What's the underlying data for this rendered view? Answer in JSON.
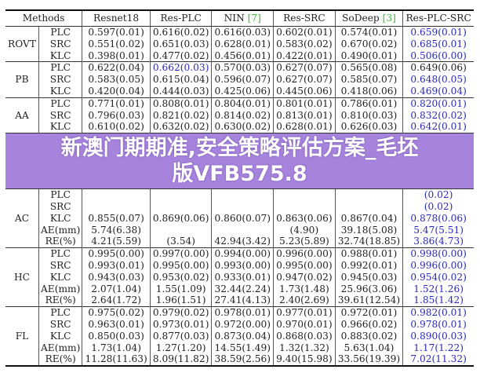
{
  "header": {
    "methods": "Methods",
    "columns": [
      {
        "label": "Resnet18",
        "cite": ""
      },
      {
        "label": "Res-PLC",
        "cite": ""
      },
      {
        "label": "NIN ",
        "cite": "[7]"
      },
      {
        "label": "Res-SRC",
        "cite": ""
      },
      {
        "label": "SoDeep ",
        "cite": "[3]"
      },
      {
        "label": "Res-PLC-SRC",
        "cite": ""
      }
    ]
  },
  "colors": {
    "best": "#2b2bb8",
    "citation": "#3cb83c",
    "banner": "#9670d7"
  },
  "groups": [
    {
      "name": "ROVT",
      "rows": [
        {
          "metric": "PLC",
          "values": [
            "0.597(0.01)",
            "0.616(0.02)",
            "0.616(0.03)",
            "0.602(0.01)",
            "0.574(0.01)",
            "0.659(0.01)"
          ],
          "best": [
            5
          ]
        },
        {
          "metric": "SRC",
          "values": [
            "0.551(0.02)",
            "0.651(0.03)",
            "0.628(0.01)",
            "0.583(0.02)",
            "0.670(0.02)",
            "0.685(0.01)"
          ],
          "best": [
            5
          ]
        },
        {
          "metric": "KLC",
          "values": [
            "0.398(0.01)",
            "0.477(0.02)",
            "0.456(0.01)",
            "0.422(0.01)",
            "0.490(0.01)",
            "0.506(0.00)"
          ],
          "best": [
            5
          ]
        }
      ]
    },
    {
      "name": "PB",
      "rows": [
        {
          "metric": "PLC",
          "values": [
            "0.622(0.04)",
            "0.662(0.03)",
            "0.570(0.03)",
            "0.627(0.07)",
            "0.565(0.08)",
            "0.649(0.06)"
          ],
          "best": [
            1
          ]
        },
        {
          "metric": "SRC",
          "values": [
            "0.583(0.05)",
            "0.615(0.04)",
            "0.596(0.07)",
            "0.627(0.07)",
            "0.585(0.07)",
            "0.648(0.05)"
          ],
          "best": [
            5
          ]
        },
        {
          "metric": "KLC",
          "values": [
            "0.420(0.04)",
            "0.444(0.03)",
            "0.425(0.06)",
            "0.445(0.06)",
            "0.418(0.06)",
            "0.469(0.04)"
          ],
          "best": [
            5
          ]
        }
      ]
    },
    {
      "name": "AA",
      "rows": [
        {
          "metric": "PLC",
          "values": [
            "0.771(0.01)",
            "0.808(0.01)",
            "0.804(0.01)",
            "0.801(0.01)",
            "0.786(0.01)",
            "0.820(0.01)"
          ],
          "best": [
            5
          ]
        },
        {
          "metric": "SRC",
          "values": [
            "0.796(0.03)",
            "0.821(0.02)",
            "0.814(0.02)",
            "0.813(0.01)",
            "0.810(0.03)",
            "0.832(0.02)"
          ],
          "best": [
            5
          ]
        },
        {
          "metric": "KLC",
          "values": [
            "0.610(0.02)",
            "0.632(0.02)",
            "0.630(0.02)",
            "0.628(0.01)",
            "0.626(0.03)",
            "0.642(0.01)"
          ],
          "best": [
            5
          ]
        }
      ]
    },
    {
      "name": "AC",
      "rows": [
        {
          "metric": "PLC",
          "values": [
            "",
            "",
            "",
            "",
            "",
            "(0.02)"
          ],
          "best": [
            5
          ]
        },
        {
          "metric": "SRC",
          "values": [
            "",
            "",
            "",
            "",
            "",
            "(0.02)"
          ],
          "best": [
            5
          ]
        },
        {
          "metric": "KLC",
          "values": [
            "0.855(0.07)",
            "0.869(0.06)",
            "0.860(0.07)",
            "0.863(0.06)",
            "0.867(0.04)",
            "0.878(0.06)"
          ],
          "best": [
            5
          ]
        },
        {
          "metric": "AE(mm)",
          "values": [
            "5.74(6.38)",
            "",
            "",
            "(4.90)",
            "39.18(5.08)",
            "5.47(5.51)"
          ],
          "best": [
            5
          ]
        },
        {
          "metric": "RE(%)",
          "values": [
            "4.21(5.59)",
            "(3.54)",
            "42.94(3.42)",
            "5.23(5.89)",
            "32.74(18.85)",
            "3.86(4.73)"
          ],
          "best": [
            5
          ]
        }
      ]
    },
    {
      "name": "HC",
      "rows": [
        {
          "metric": "PLC",
          "values": [
            "0.995(0.00)",
            "0.997(0.00)",
            "0.994(0.00)",
            "0.996(0.00)",
            "0.988(0.01)",
            "0.998(0.00)"
          ],
          "best": [
            5
          ]
        },
        {
          "metric": "SRC",
          "values": [
            "0.993(0.01)",
            "0.995(0.00)",
            "0.993(0.00)",
            "0.995(0.00)",
            "0.992(0.01)",
            "0.996(0.00)"
          ],
          "best": [
            5
          ]
        },
        {
          "metric": "KLC",
          "values": [
            "0.943(0.03)",
            "0.953(0.02)",
            "0.933(0.01)",
            "0.947(0.02)",
            "0.945(0.03)",
            "0.954(0.02)"
          ],
          "best": [
            5
          ]
        },
        {
          "metric": "AE(mm)",
          "values": [
            "2.07(1.04)",
            "1.55(1.09)",
            "32.44(2.24)",
            "1.73(1.48)",
            "25.96(3.06)",
            "1.52(1.26)"
          ],
          "best": [
            5
          ]
        },
        {
          "metric": "RE(%)",
          "values": [
            "2.64(1.72)",
            "1.96(1.51)",
            "27.41(4.13)",
            "2.40(2.69)",
            "39.61(12.54)",
            "1.85(1.42)"
          ],
          "best": [
            5
          ]
        }
      ]
    },
    {
      "name": "FL",
      "rows": [
        {
          "metric": "PLC",
          "values": [
            "0.975(0.02)",
            "0.979(0.02)",
            "0.978(0.01)",
            "0.977(0.01)",
            "0.972(0.01)",
            "0.982(0.01)"
          ],
          "best": [
            5
          ]
        },
        {
          "metric": "SRC",
          "values": [
            "0.963(0.01)",
            "0.973(0.01)",
            "0.972(0.00)",
            "0.970(0.01)",
            "0.966(0.02)",
            "0.978(0.01)"
          ],
          "best": [
            5
          ]
        },
        {
          "metric": "KLC",
          "values": [
            "0.850(0.03)",
            "0.877(0.03)",
            "0.873(0.04)",
            "0.868(0.03)",
            "0.883(0.02)",
            "0.890(0.03)"
          ],
          "best": [
            5
          ]
        },
        {
          "metric": "AE(mm)",
          "values": [
            "1.73(1.04)",
            "1.27(1.20)",
            "14.55(1.49)",
            "1.32(1.32)",
            "5.63(1.04)",
            "1.17(1.22)"
          ],
          "best": [
            5
          ]
        },
        {
          "metric": "RE(%)",
          "values": [
            "11.28(11.63)",
            "8.09(11.82)",
            "38.59(2.56)",
            "9.40(15.98)",
            "33.56(19.39)",
            "7.02(11.32)"
          ],
          "best": [
            5
          ]
        }
      ]
    }
  ],
  "banner": {
    "line1": "新澳门期期准,安全策略评估方案_毛坯",
    "line2": "版VFB575.8"
  }
}
